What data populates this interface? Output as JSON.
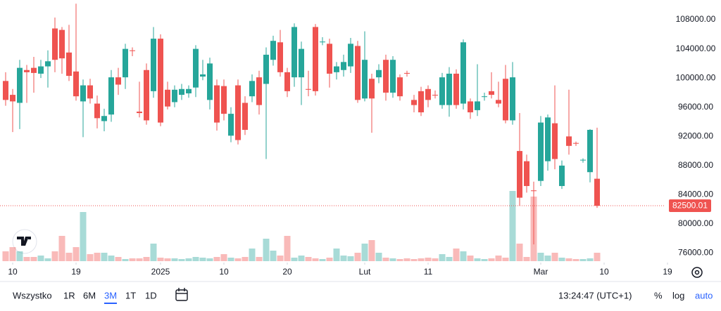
{
  "chart_data": {
    "type": "candlestick",
    "open": [
      99600,
      97700,
      96600,
      101100,
      101400,
      100600,
      101600,
      106800,
      106600,
      103500,
      100900,
      96800,
      99000,
      96500,
      94100,
      95000,
      100100,
      100100,
      103800,
      95400,
      101100,
      98200,
      105400,
      98400,
      96700,
      97700,
      97900,
      98700,
      100200,
      97000,
      99000,
      98900,
      92100,
      99000,
      96600,
      97500,
      100100,
      99200,
      102500,
      104900,
      100800,
      100100,
      100100,
      98500,
      107000,
      104900,
      104700,
      100800,
      101100,
      101600,
      104400,
      97200,
      99900,
      100100,
      102500,
      98000,
      100100,
      100700,
      97000,
      98200,
      98500,
      97700,
      96300,
      96300,
      100600,
      96500,
      96800,
      95600,
      97400,
      98200,
      97000,
      99900,
      94200,
      90000,
      88600,
      84600,
      85900,
      88600,
      93800,
      85200,
      92000,
      91100,
      88700,
      87100,
      86200
    ],
    "high": [
      100800,
      98500,
      102500,
      101800,
      102900,
      102500,
      103800,
      108300,
      107000,
      107300,
      110200,
      99800,
      99900,
      97600,
      95800,
      101100,
      101400,
      104700,
      104200,
      99500,
      102000,
      107000,
      106000,
      99500,
      99000,
      99200,
      99000,
      104500,
      102500,
      102800,
      99800,
      99800,
      96000,
      99800,
      97500,
      100500,
      101000,
      104200,
      105800,
      106600,
      101400,
      107500,
      105000,
      101000,
      107400,
      105600,
      105400,
      102200,
      103200,
      105500,
      105100,
      106400,
      100600,
      101900,
      103200,
      103000,
      100500,
      101000,
      97700,
      98800,
      99000,
      98300,
      100700,
      101500,
      101200,
      105300,
      97200,
      101900,
      98000,
      100800,
      99500,
      101800,
      102200,
      95200,
      89500,
      85800,
      94800,
      95000,
      99000,
      88700,
      98400,
      91300,
      89000,
      93000,
      93200
    ],
    "low": [
      96200,
      92600,
      93000,
      96600,
      98000,
      100000,
      98700,
      100800,
      100600,
      99600,
      96900,
      91900,
      96500,
      93100,
      92700,
      94000,
      97700,
      98500,
      103000,
      94600,
      93600,
      97300,
      93400,
      95700,
      96000,
      97000,
      97300,
      97400,
      99700,
      95700,
      92800,
      94200,
      91200,
      90900,
      92200,
      96700,
      95000,
      88900,
      101700,
      100200,
      97400,
      98800,
      96300,
      97500,
      97600,
      104500,
      98700,
      99800,
      100200,
      100700,
      96600,
      96800,
      92500,
      99300,
      96900,
      97300,
      96900,
      100200,
      95300,
      94800,
      96000,
      97200,
      95800,
      94700,
      95800,
      95700,
      94400,
      94800,
      96900,
      97200,
      96000,
      93800,
      93600,
      82500,
      84300,
      77200,
      85200,
      87300,
      87500,
      84800,
      89500,
      90700,
      88400,
      85700,
      82200
    ],
    "close": [
      97000,
      96800,
      101400,
      100800,
      100700,
      101600,
      102300,
      102500,
      102700,
      100300,
      97500,
      99000,
      97200,
      94500,
      94800,
      100100,
      99100,
      104000,
      103700,
      95200,
      94200,
      105400,
      93900,
      96100,
      98400,
      98500,
      98500,
      104000,
      100500,
      102000,
      93900,
      95100,
      95100,
      91500,
      92900,
      99600,
      96300,
      103200,
      105100,
      100800,
      98200,
      107000,
      104000,
      98400,
      98200,
      105000,
      100600,
      101600,
      102200,
      104700,
      97000,
      102500,
      97200,
      101100,
      98000,
      102500,
      97500,
      100600,
      96300,
      95300,
      97000,
      97600,
      100100,
      100600,
      96300,
      104900,
      95300,
      96800,
      97500,
      97700,
      96500,
      94200,
      100100,
      83600,
      85200,
      84500,
      93900,
      94600,
      88900,
      88000,
      90700,
      91000,
      88800,
      92900,
      82500
    ],
    "volume": [
      14,
      20,
      14,
      6,
      6,
      8,
      4,
      14,
      36,
      12,
      20,
      70,
      10,
      12,
      12,
      8,
      6,
      3,
      4,
      4,
      6,
      25,
      5,
      4,
      4,
      3,
      4,
      6,
      5,
      4,
      6,
      10,
      5,
      4,
      6,
      18,
      6,
      32,
      15,
      8,
      36,
      5,
      8,
      6,
      4,
      3,
      5,
      18,
      8,
      7,
      12,
      25,
      30,
      12,
      5,
      4,
      3,
      4,
      3,
      4,
      5,
      4,
      10,
      6,
      18,
      14,
      8,
      4,
      3,
      4,
      8,
      5,
      100,
      25,
      6,
      92,
      12,
      8,
      12,
      5,
      4,
      3,
      3,
      4,
      12
    ],
    "up_color": "#26a69a",
    "down_color": "#ef5350",
    "last_price": 82500.01,
    "ylim": [
      74900,
      110700
    ],
    "yticks": [
      {
        "value": 76000,
        "label": "76000.00"
      },
      {
        "value": 80000,
        "label": "80000.00"
      },
      {
        "value": 84000,
        "label": "84000.00"
      },
      {
        "value": 88000,
        "label": "88000.00"
      },
      {
        "value": 92000,
        "label": "92000.00"
      },
      {
        "value": 96000,
        "label": "96000.00"
      },
      {
        "value": 100000,
        "label": "100000.00"
      },
      {
        "value": 104000,
        "label": "104000.00"
      },
      {
        "value": 108000,
        "label": "108000.00"
      }
    ],
    "xlim": [
      -0.8,
      96.7
    ],
    "xticks": [
      {
        "value": 1,
        "label": "10"
      },
      {
        "value": 10,
        "label": "19"
      },
      {
        "value": 22,
        "label": "2025"
      },
      {
        "value": 31,
        "label": "10"
      },
      {
        "value": 40,
        "label": "20"
      },
      {
        "value": 51,
        "label": "Lut"
      },
      {
        "value": 60,
        "label": "11"
      },
      {
        "value": 76,
        "label": "Mar"
      },
      {
        "value": 85,
        "label": "10"
      },
      {
        "value": 94,
        "label": "19"
      }
    ]
  },
  "toolbar": {
    "ranges": [
      "Wszystko",
      "1R",
      "6M",
      "3M",
      "1T",
      "1D"
    ],
    "selected_range": 3,
    "clock": "13:24:47 (UTC+1)",
    "scale_modes": [
      "%",
      "log",
      "auto"
    ],
    "active_scale_mode": 2
  }
}
